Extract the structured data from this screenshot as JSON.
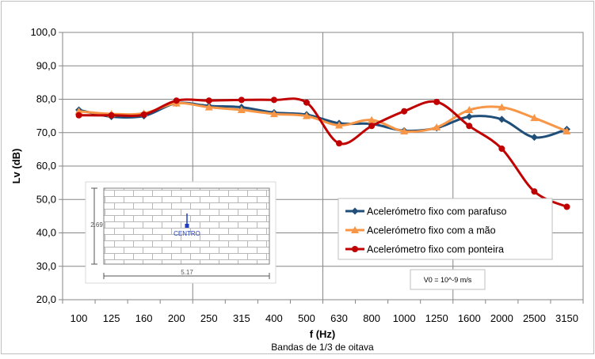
{
  "chart_data": {
    "type": "line",
    "title": "",
    "xlabel": "f (Hz)",
    "xlabel_sub": "Bandas de 1/3 de oitava",
    "ylabel": "Lv (dB)",
    "ylim": [
      20,
      100
    ],
    "yticks": [
      "20,0",
      "30,0",
      "40,0",
      "50,0",
      "60,0",
      "70,0",
      "80,0",
      "90,0",
      "100,0"
    ],
    "categories": [
      "100",
      "125",
      "160",
      "200",
      "250",
      "315",
      "400",
      "500",
      "630",
      "800",
      "1000",
      "1250",
      "1600",
      "2000",
      "2500",
      "3150"
    ],
    "grid": true,
    "legend_position": "right",
    "series": [
      {
        "name": "Acelerómetro fixo com parafuso",
        "color": "#1f4e79",
        "marker": "diamond",
        "values": [
          76.8,
          74.8,
          75.0,
          78.8,
          78.0,
          77.6,
          76.0,
          75.4,
          72.8,
          72.6,
          70.6,
          71.4,
          74.8,
          74.0,
          68.6,
          71.0
        ]
      },
      {
        "name": "Acelerómetro fixo com a mão",
        "color": "#f79646",
        "marker": "triangle",
        "values": [
          76.4,
          75.6,
          75.8,
          78.8,
          77.6,
          76.8,
          75.6,
          75.0,
          72.2,
          73.8,
          70.4,
          71.6,
          76.8,
          77.6,
          74.4,
          70.4
        ]
      },
      {
        "name": "Acelerómetro fixo com ponteira",
        "color": "#c00000",
        "marker": "circle",
        "values": [
          75.2,
          75.2,
          75.4,
          79.6,
          79.6,
          79.8,
          79.8,
          79.0,
          66.8,
          72.0,
          76.4,
          79.2,
          72.0,
          65.2,
          52.4,
          47.8
        ]
      }
    ],
    "annotation": "V0 = 10^-9 m/s",
    "inset": {
      "height_label": "2.69",
      "width_label": "5.17",
      "center_label": "CENTRO"
    }
  }
}
